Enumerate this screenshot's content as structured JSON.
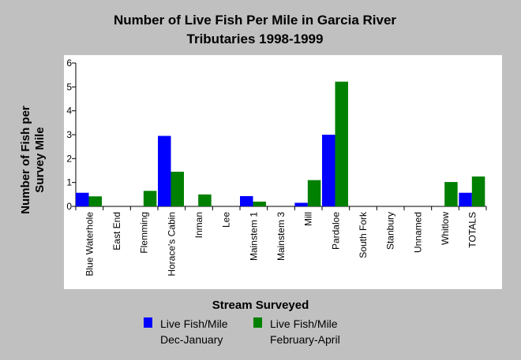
{
  "chart_data": {
    "type": "bar",
    "title_line1": "Number of Live Fish Per Mile in Garcia River",
    "title_line2": "Tributaries 1998-1999",
    "xlabel": "Stream Surveyed",
    "ylabel_line1": "Number of Fish per",
    "ylabel_line2": "Survey Mile",
    "ylim": [
      0,
      6
    ],
    "yticks": [
      "0",
      "1",
      "2",
      "3",
      "4",
      "5",
      "6"
    ],
    "categories": [
      "Blue Waterhole",
      "East End",
      "Flemming",
      "Horace's Cabin",
      "Inman",
      "Lee",
      "Mainstem 1",
      "Mainstem 3",
      "Mill",
      "Pardaloe",
      "South Fork",
      "Stanbury",
      "Unnamed",
      "Whitlow",
      "TOTALS"
    ],
    "series": [
      {
        "name_line1": "Live Fish/Mile",
        "name_line2": "Dec-January",
        "color": "#0000ff",
        "values": [
          0.57,
          0,
          0,
          2.95,
          0,
          0,
          0.43,
          0,
          0.15,
          3.0,
          0,
          0,
          0,
          0,
          0.57
        ]
      },
      {
        "name_line1": "Live Fish/Mile",
        "name_line2": "February-April",
        "color": "#008000",
        "values": [
          0.42,
          0,
          0.65,
          1.45,
          0.5,
          0,
          0.2,
          0,
          1.1,
          5.22,
          0,
          0,
          0,
          1.02,
          1.25
        ]
      }
    ],
    "grid": false,
    "legend_position": "bottom",
    "plot_background": "#ffffff",
    "page_background": "#c0c0c0"
  }
}
